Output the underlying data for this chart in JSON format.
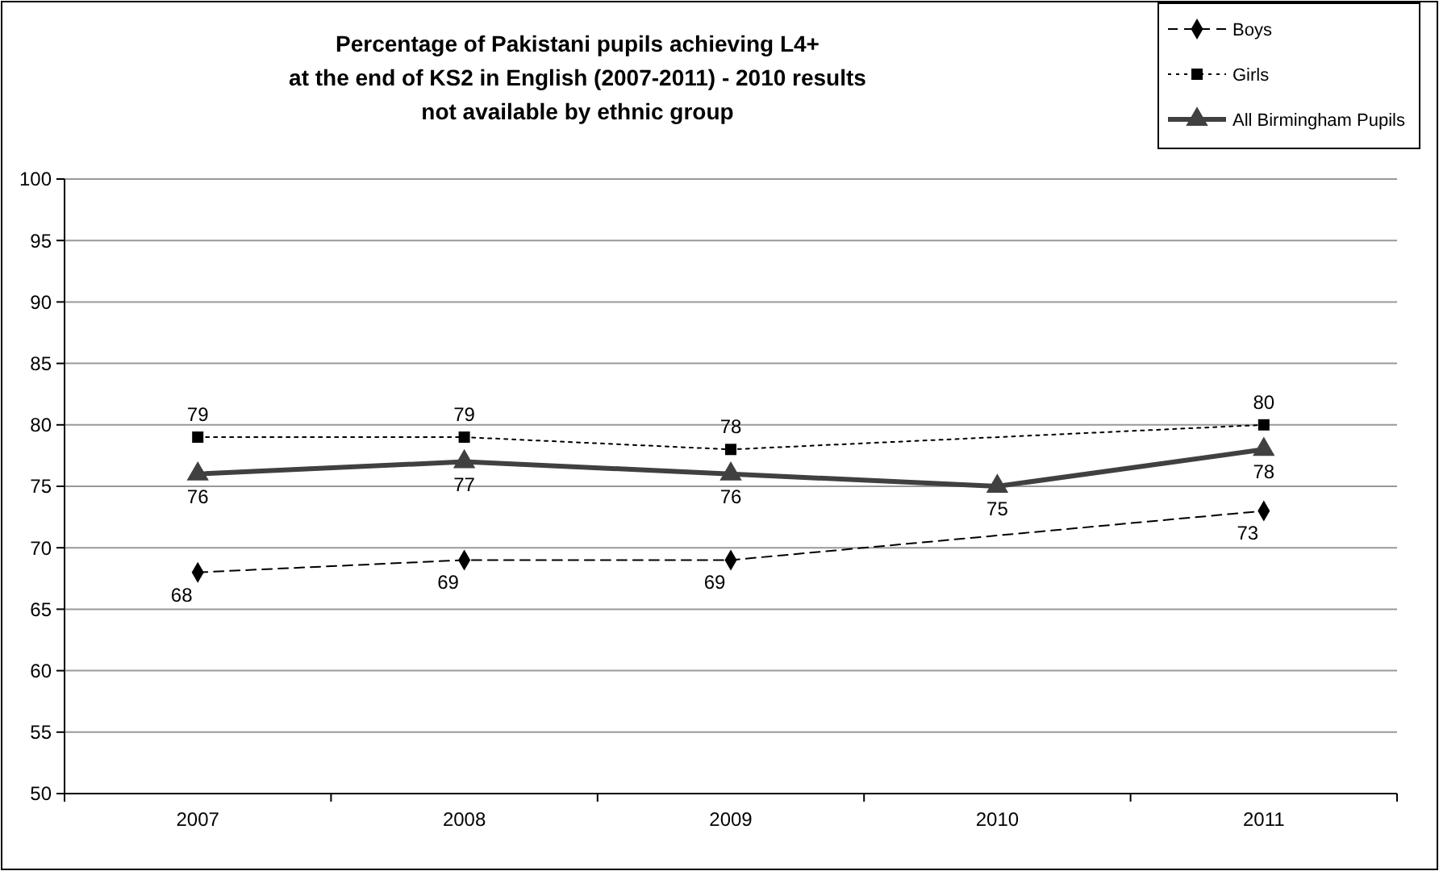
{
  "chart_data": {
    "type": "line",
    "title": "Percentage of Pakistani pupils achieving L4+\nat the end of KS2 in English (2007-2011) - 2010 results\nnot available by ethnic group",
    "categories": [
      "2007",
      "2008",
      "2009",
      "2010",
      "2011"
    ],
    "series": [
      {
        "name": "Boys",
        "color": "#000000",
        "values": [
          68,
          69,
          69,
          null,
          73
        ],
        "marker": "diamond",
        "line_style": "dashed"
      },
      {
        "name": "Girls",
        "color": "#000000",
        "values": [
          79,
          79,
          78,
          null,
          80
        ],
        "marker": "square",
        "line_style": "dotted"
      },
      {
        "name": "All Birmingham Pupils",
        "color": "#404040",
        "values": [
          76,
          77,
          76,
          75,
          78
        ],
        "marker": "triangle",
        "line_style": "solid"
      }
    ],
    "ylim": [
      50,
      100
    ],
    "yticks": [
      50,
      55,
      60,
      65,
      70,
      75,
      80,
      85,
      90,
      95,
      100
    ],
    "grid": "y",
    "legend": "top right",
    "data_labels": true
  }
}
